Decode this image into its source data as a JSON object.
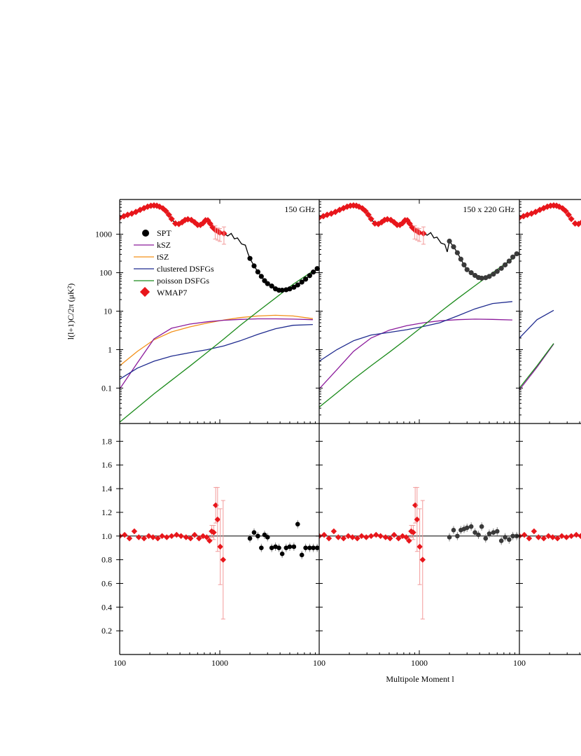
{
  "figure": {
    "ylabel_top": "l(l+1)C/2π (μK²)",
    "xlabel": "Multipole Moment l"
  },
  "panels": [
    {
      "title": "150 GHz"
    },
    {
      "title": "150 x 220 GHz"
    },
    {
      "title": ""
    }
  ],
  "legend": {
    "entries": [
      {
        "label": "SPT",
        "marker": "circle",
        "color": "#000000"
      },
      {
        "label": "kSZ",
        "marker": "line",
        "color": "#8b1a9b"
      },
      {
        "label": "tSZ",
        "marker": "line",
        "color": "#f39019"
      },
      {
        "label": "clustered DSFGs",
        "marker": "line",
        "color": "#1f2b8f"
      },
      {
        "label": "poisson DSFGs",
        "marker": "line",
        "color": "#1a8a1a"
      },
      {
        "label": "WMAP7",
        "marker": "diamond",
        "color": "#e8161b"
      }
    ]
  },
  "colors": {
    "wmap": "#e8161b",
    "wmap_err": "#f29a9a",
    "spt_p1": "#000000",
    "spt_p2": "#3a3a3a",
    "spt_err": "#888888",
    "ksz": "#8b1a9b",
    "tsz": "#f39019",
    "clustered": "#1f2b8f",
    "poisson": "#1a8a1a",
    "theory": "#000000"
  },
  "chart_data": {
    "type": "scatter",
    "x_scale": "log",
    "top_y_scale": "log",
    "xlim": [
      100,
      10000
    ],
    "xticks": [
      {
        "v": 100,
        "label": "100"
      },
      {
        "v": 1000,
        "label": "1000"
      }
    ],
    "top_ylim": [
      0.012,
      8000
    ],
    "top_yticks": [
      {
        "v": 0.1,
        "label": "0.1"
      },
      {
        "v": 1,
        "label": "1"
      },
      {
        "v": 10,
        "label": "10"
      },
      {
        "v": 100,
        "label": "100"
      },
      {
        "v": 1000,
        "label": "1000"
      }
    ],
    "bottom_ylim": [
      0,
      1.95
    ],
    "bottom_yticks": [
      {
        "v": 0.2,
        "label": "0.2"
      },
      {
        "v": 0.4,
        "label": "0.4"
      },
      {
        "v": 0.6,
        "label": "0.6"
      },
      {
        "v": 0.8,
        "label": "0.8"
      },
      {
        "v": 1.0,
        "label": "1.0"
      },
      {
        "v": 1.2,
        "label": "1.2"
      },
      {
        "v": 1.4,
        "label": "1.4"
      },
      {
        "v": 1.6,
        "label": "1.6"
      },
      {
        "v": 1.8,
        "label": "1.8"
      }
    ],
    "wmap_top": {
      "l": [
        100,
        110,
        120,
        132,
        145,
        160,
        175,
        190,
        205,
        220,
        235,
        250,
        270,
        290,
        310,
        330,
        360,
        390,
        420,
        450,
        480,
        520,
        560,
        600,
        640,
        680,
        720,
        760,
        800,
        850,
        900,
        950,
        1000,
        1100
      ],
      "v": [
        2700,
        2950,
        3200,
        3450,
        3800,
        4300,
        4750,
        5200,
        5500,
        5600,
        5500,
        5200,
        4700,
        4000,
        3200,
        2500,
        1900,
        1850,
        2050,
        2350,
        2450,
        2350,
        2050,
        1750,
        1750,
        1950,
        2300,
        2300,
        1900,
        1500,
        1300,
        1200,
        1100,
        1050
      ]
    },
    "wmap_err_top": [
      {
        "l": 900,
        "lo": 750,
        "hi": 1650
      },
      {
        "l": 950,
        "lo": 700,
        "hi": 1450
      },
      {
        "l": 1000,
        "lo": 650,
        "hi": 1400
      },
      {
        "l": 1100,
        "lo": 550,
        "hi": 1550
      }
    ],
    "ratio_wmap": {
      "l": [
        100,
        112,
        125,
        140,
        155,
        175,
        195,
        215,
        240,
        265,
        295,
        330,
        370,
        410,
        460,
        510,
        560,
        620,
        680,
        740,
        790,
        830,
        870,
        910,
        950,
        1010,
        1080
      ],
      "v": [
        1.0,
        1.01,
        0.98,
        1.04,
        0.99,
        0.98,
        1.0,
        0.99,
        0.98,
        1.0,
        0.99,
        1.0,
        1.01,
        1.0,
        0.99,
        0.98,
        1.01,
        0.98,
        1.0,
        0.99,
        0.96,
        1.04,
        1.03,
        1.26,
        1.14,
        0.91,
        0.8
      ],
      "err": [
        0.01,
        0.01,
        0.01,
        0.01,
        0.01,
        0.01,
        0.01,
        0.01,
        0.01,
        0.01,
        0.01,
        0.01,
        0.01,
        0.01,
        0.01,
        0.02,
        0.02,
        0.02,
        0.03,
        0.03,
        0.04,
        0.05,
        0.06,
        0.15,
        0.27,
        0.32,
        0.5
      ]
    },
    "panels": [
      {
        "name": "150 GHz",
        "spt_top": {
          "l": [
            2000,
            2200,
            2400,
            2600,
            2800,
            3000,
            3300,
            3600,
            3900,
            4200,
            4600,
            5000,
            5500,
            6000,
            6600,
            7200,
            7900,
            8600,
            9400
          ],
          "v": [
            235,
            150,
            105,
            80,
            62,
            52,
            45,
            38,
            35,
            35,
            36,
            38,
            42,
            48,
            57,
            68,
            84,
            104,
            128
          ]
        },
        "theory_tail": [
          130,
          125
        ],
        "ksz": [
          0.095,
          0.45,
          1.9,
          3.6,
          4.6,
          5.3,
          5.8,
          6.1,
          6.3,
          6.3,
          6.2,
          6.0
        ],
        "tsz": [
          0.38,
          0.9,
          1.8,
          2.9,
          3.9,
          4.9,
          5.9,
          6.8,
          7.5,
          7.8,
          7.5,
          6.4
        ],
        "clustered": [
          0.17,
          0.33,
          0.5,
          0.68,
          0.83,
          1.0,
          1.25,
          1.7,
          2.5,
          3.5,
          4.3,
          4.5
        ],
        "poisson": [
          0.013,
          0.031,
          0.071,
          0.16,
          0.37,
          0.85,
          1.9,
          4.3,
          9.8,
          22,
          50,
          110
        ],
        "ratio_spt": {
          "l": [
            2000,
            2200,
            2400,
            2600,
            2800,
            3000,
            3300,
            3600,
            3900,
            4200,
            4600,
            5000,
            5500,
            6000,
            6600,
            7200,
            7900,
            8600,
            9400
          ],
          "v": [
            0.98,
            1.03,
            1.0,
            0.9,
            1.01,
            0.99,
            0.9,
            0.91,
            0.9,
            0.85,
            0.9,
            0.91,
            0.91,
            1.1,
            0.84,
            0.9,
            0.9,
            0.9,
            0.9
          ]
        }
      },
      {
        "name": "150 x 220 GHz",
        "spt_top": {
          "l": [
            2000,
            2200,
            2400,
            2600,
            2800,
            3000,
            3300,
            3600,
            3900,
            4200,
            4600,
            5000,
            5500,
            6000,
            6600,
            7200,
            7900,
            8600,
            9400
          ],
          "v": [
            660,
            470,
            330,
            225,
            160,
            120,
            100,
            85,
            75,
            72,
            74,
            80,
            92,
            108,
            130,
            160,
            200,
            255,
            310
          ]
        },
        "theory_tail": [
          330,
          320
        ],
        "ksz": [
          0.095,
          0.3,
          0.9,
          2.0,
          3.2,
          4.2,
          5.0,
          5.6,
          6.0,
          6.2,
          6.1,
          5.9
        ],
        "clustered": [
          0.5,
          1.0,
          1.7,
          2.4,
          2.8,
          3.3,
          4.0,
          5.0,
          7.5,
          11.5,
          15.8,
          17.8
        ],
        "poisson": [
          0.032,
          0.075,
          0.17,
          0.38,
          0.85,
          1.9,
          4.2,
          9.3,
          21,
          46,
          100,
          230
        ],
        "ratio_spt": {
          "l": [
            2000,
            2200,
            2400,
            2600,
            2800,
            3000,
            3300,
            3600,
            3900,
            4200,
            4600,
            5000,
            5500,
            6000,
            6600,
            7200,
            7900,
            8600,
            9400
          ],
          "v": [
            0.99,
            1.05,
            1.0,
            1.05,
            1.06,
            1.07,
            1.08,
            1.03,
            1.01,
            1.08,
            0.98,
            1.02,
            1.03,
            1.04,
            0.96,
            0.99,
            0.97,
            1.0,
            1.0
          ]
        }
      },
      {
        "name": "",
        "ksz": [
          0.09,
          0.35,
          1.4
        ],
        "poisson": [
          0.1,
          0.38,
          1.45
        ],
        "clustered": [
          2.0,
          6.0,
          10.5
        ]
      }
    ]
  }
}
